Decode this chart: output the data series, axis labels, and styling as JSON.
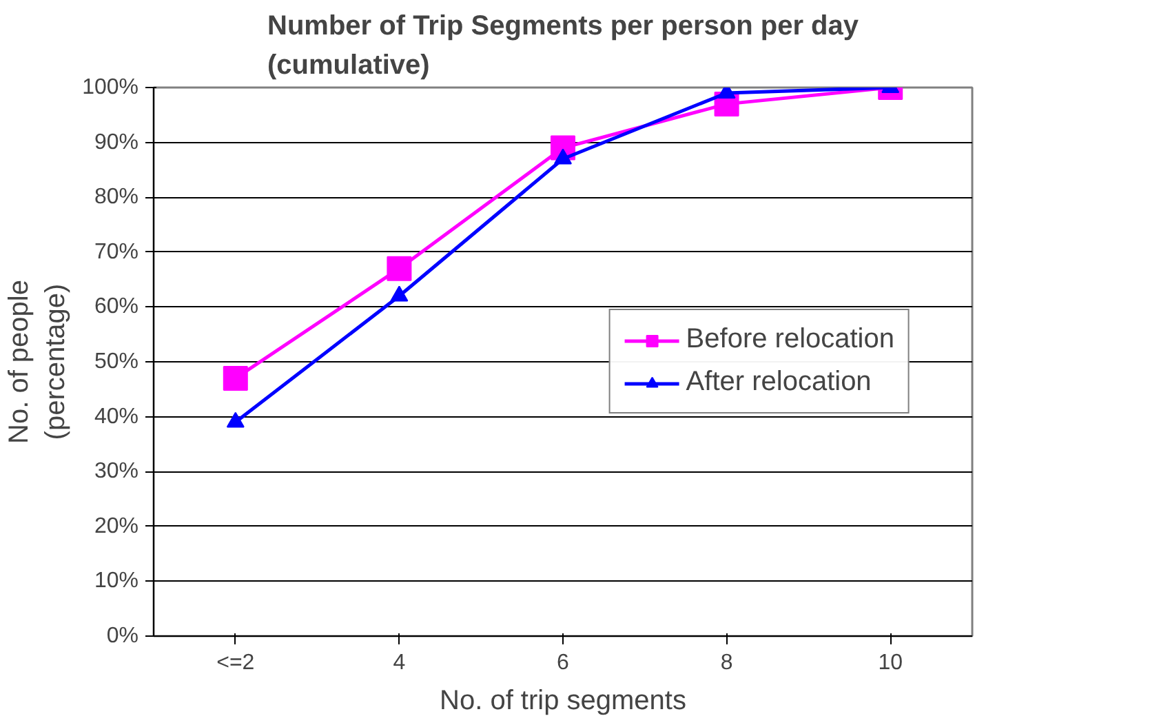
{
  "chart_data": {
    "type": "line",
    "title": "Number of Trip Segments per person per day\n(cumulative)",
    "xlabel": "No. of trip segments",
    "ylabel": "No. of people\n(percentage)",
    "categories": [
      "<=2",
      "4",
      "6",
      "8",
      "10"
    ],
    "series": [
      {
        "name": "Before relocation",
        "color": "#ff00ff",
        "marker": "square",
        "values": [
          47,
          67,
          89,
          97,
          100
        ]
      },
      {
        "name": "After relocation",
        "color": "#0000ff",
        "marker": "triangle",
        "values": [
          39,
          62,
          87,
          99,
          100
        ]
      }
    ],
    "ylim": [
      0,
      100
    ],
    "yticks": [
      {
        "value": 0,
        "label": "0%"
      },
      {
        "value": 10,
        "label": "10%"
      },
      {
        "value": 20,
        "label": "20%"
      },
      {
        "value": 30,
        "label": "30%"
      },
      {
        "value": 40,
        "label": "40%"
      },
      {
        "value": 50,
        "label": "50%"
      },
      {
        "value": 60,
        "label": "60%"
      },
      {
        "value": 70,
        "label": "70%"
      },
      {
        "value": 80,
        "label": "80%"
      },
      {
        "value": 90,
        "label": "90%"
      },
      {
        "value": 100,
        "label": "100%"
      }
    ],
    "grid": "y",
    "legend": "right",
    "line_style": "solid"
  }
}
